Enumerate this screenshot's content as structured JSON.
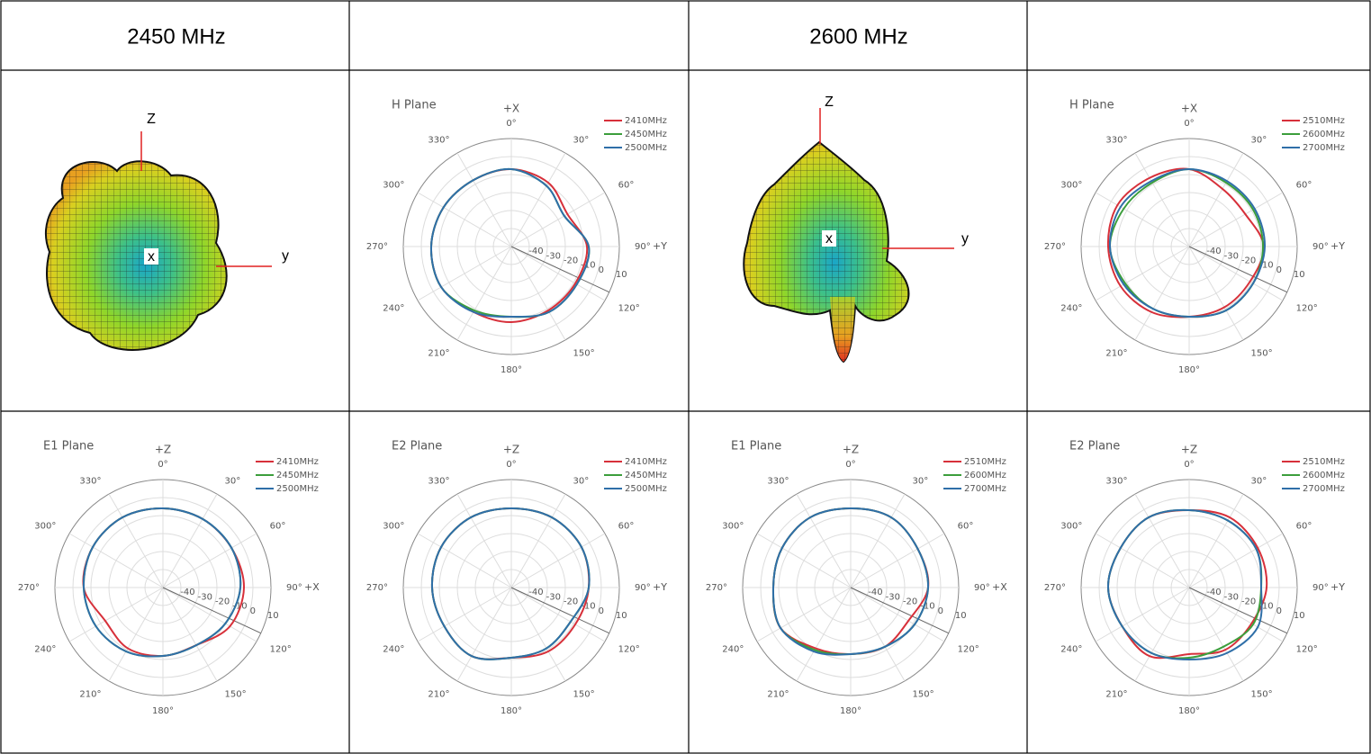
{
  "header": [
    "2450 MHz",
    "2600 MHz"
  ],
  "patterns_3d": [
    {
      "axes": {
        "z": "Z",
        "x": "x",
        "y": "y"
      }
    },
    {
      "axes": {
        "z": "Z",
        "x": "x",
        "y": "y"
      }
    }
  ],
  "chart_data": [
    {
      "type": "polar",
      "title": "H Plane",
      "axis_labels": {
        "top": "+X",
        "right": "+Y"
      },
      "theta": [
        0,
        30,
        60,
        90,
        120,
        150,
        180,
        210,
        240,
        270,
        300,
        330
      ],
      "rlim": [
        -50,
        10
      ],
      "rticks": [
        -40,
        -30,
        -20,
        -10,
        0,
        10
      ],
      "thetaticks": [
        {
          "value": 0,
          "label": "0°"
        },
        {
          "value": 30,
          "label": "30°"
        },
        {
          "value": 60,
          "label": "60°"
        },
        {
          "value": 90,
          "label": "90°"
        },
        {
          "value": 120,
          "label": "120°"
        },
        {
          "value": 150,
          "label": "150°"
        },
        {
          "value": 180,
          "label": "180°"
        },
        {
          "value": 210,
          "label": "210°"
        },
        {
          "value": 240,
          "label": "240°"
        },
        {
          "value": 270,
          "label": "270°"
        },
        {
          "value": 300,
          "label": "300°"
        },
        {
          "value": 330,
          "label": "330°"
        }
      ],
      "series": [
        {
          "name": "2410MHz",
          "color": "#d7303a",
          "values": [
            -7,
            -9,
            -14,
            -8,
            -9,
            -9,
            -8,
            -8,
            -5,
            -5.5,
            -6.5,
            -7.5
          ]
        },
        {
          "name": "2450MHz",
          "color": "#3c9e3c",
          "values": [
            -7,
            -11,
            -16,
            -7,
            -8,
            -8,
            -11,
            -9,
            -5,
            -5.5,
            -6.5,
            -7.5
          ]
        },
        {
          "name": "2500MHz",
          "color": "#2f6fa8",
          "values": [
            -7,
            -11,
            -16,
            -7,
            -8,
            -8,
            -11,
            -8,
            -5,
            -5.5,
            -6.5,
            -7.5
          ]
        }
      ]
    },
    {
      "type": "polar",
      "title": "H Plane",
      "axis_labels": {
        "top": "+X",
        "right": "+Y"
      },
      "theta": [
        0,
        30,
        60,
        90,
        120,
        150,
        180,
        210,
        240,
        270,
        300,
        330
      ],
      "rlim": [
        -50,
        10
      ],
      "rticks": [
        -40,
        -30,
        -20,
        -10,
        0,
        10
      ],
      "thetaticks": [
        {
          "value": 0,
          "label": "0°"
        },
        {
          "value": 30,
          "label": "30°"
        },
        {
          "value": 60,
          "label": "60°"
        },
        {
          "value": 90,
          "label": "90°"
        },
        {
          "value": 120,
          "label": "120°"
        },
        {
          "value": 150,
          "label": "150°"
        },
        {
          "value": 180,
          "label": "180°"
        },
        {
          "value": 210,
          "label": "210°"
        },
        {
          "value": 240,
          "label": "240°"
        },
        {
          "value": 270,
          "label": "270°"
        },
        {
          "value": 300,
          "label": "300°"
        },
        {
          "value": 330,
          "label": "330°"
        }
      ],
      "series": [
        {
          "name": "2510MHz",
          "color": "#d7303a",
          "values": [
            -7,
            -13,
            -14,
            -8.5,
            -11,
            -11,
            -11,
            -8,
            -6,
            -5,
            -4,
            -6
          ]
        },
        {
          "name": "2600MHz",
          "color": "#3c9e3c",
          "values": [
            -7,
            -9,
            -9,
            -9,
            -9,
            -9,
            -11,
            -10,
            -9,
            -6,
            -8,
            -9
          ]
        },
        {
          "name": "2700MHz",
          "color": "#2f6fa8",
          "values": [
            -7,
            -8,
            -8,
            -8,
            -9,
            -9,
            -11,
            -10,
            -8,
            -6,
            -6,
            -8
          ]
        }
      ]
    },
    {
      "type": "polar",
      "title": "E1 Plane",
      "axis_labels": {
        "top": "+Z",
        "right": "+X"
      },
      "theta": [
        0,
        30,
        60,
        90,
        120,
        150,
        180,
        210,
        240,
        270,
        300,
        330
      ],
      "rlim": [
        -50,
        10
      ],
      "rticks": [
        -40,
        -30,
        -20,
        -10,
        0,
        10
      ],
      "thetaticks": [
        {
          "value": 0,
          "label": "0°"
        },
        {
          "value": 30,
          "label": "30°"
        },
        {
          "value": 60,
          "label": "60°"
        },
        {
          "value": 90,
          "label": "90°"
        },
        {
          "value": 120,
          "label": "120°"
        },
        {
          "value": 150,
          "label": "150°"
        },
        {
          "value": 180,
          "label": "180°"
        },
        {
          "value": 210,
          "label": "210°"
        },
        {
          "value": 240,
          "label": "240°"
        },
        {
          "value": 270,
          "label": "270°"
        },
        {
          "value": 300,
          "label": "300°"
        },
        {
          "value": 330,
          "label": "330°"
        }
      ],
      "series": [
        {
          "name": "2410MHz",
          "color": "#d7303a",
          "values": [
            -6,
            -6,
            -6,
            -5,
            -7,
            -13,
            -12,
            -11,
            -13,
            -6,
            -5,
            -5
          ]
        },
        {
          "name": "2450MHz",
          "color": "#3c9e3c",
          "values": [
            -6,
            -6,
            -6,
            -7,
            -10,
            -13,
            -12,
            -9,
            -7,
            -6,
            -5,
            -5
          ]
        },
        {
          "name": "2500MHz",
          "color": "#2f6fa8",
          "values": [
            -6,
            -6,
            -6,
            -7,
            -10,
            -13,
            -12,
            -9,
            -7,
            -6,
            -5,
            -5
          ]
        }
      ]
    },
    {
      "type": "polar",
      "title": "E2 Plane",
      "axis_labels": {
        "top": "+Z",
        "right": "+Y"
      },
      "theta": [
        0,
        30,
        60,
        90,
        120,
        150,
        180,
        210,
        240,
        270,
        300,
        330
      ],
      "rlim": [
        -50,
        10
      ],
      "rticks": [
        -40,
        -30,
        -20,
        -10,
        0,
        10
      ],
      "thetaticks": [
        {
          "value": 0,
          "label": "0°"
        },
        {
          "value": 30,
          "label": "30°"
        },
        {
          "value": 60,
          "label": "60°"
        },
        {
          "value": 90,
          "label": "90°"
        },
        {
          "value": 120,
          "label": "120°"
        },
        {
          "value": 150,
          "label": "150°"
        },
        {
          "value": 180,
          "label": "180°"
        },
        {
          "value": 210,
          "label": "210°"
        },
        {
          "value": 240,
          "label": "240°"
        },
        {
          "value": 270,
          "label": "270°"
        },
        {
          "value": 300,
          "label": "300°"
        },
        {
          "value": 330,
          "label": "330°"
        }
      ],
      "series": [
        {
          "name": "2410MHz",
          "color": "#d7303a",
          "values": [
            -6,
            -5,
            -5,
            -7,
            -9,
            -9,
            -11,
            -6,
            -7,
            -6,
            -5,
            -5
          ]
        },
        {
          "name": "2450MHz",
          "color": "#3c9e3c",
          "values": [
            -6,
            -5,
            -5,
            -7,
            -12,
            -11,
            -11,
            -6,
            -7,
            -6,
            -5,
            -5
          ]
        },
        {
          "name": "2500MHz",
          "color": "#2f6fa8",
          "values": [
            -6,
            -5,
            -5,
            -7,
            -12,
            -11,
            -11,
            -6,
            -7,
            -6,
            -5,
            -5
          ]
        }
      ]
    },
    {
      "type": "polar",
      "title": "E1 Plane",
      "axis_labels": {
        "top": "+Z",
        "right": "+X"
      },
      "theta": [
        0,
        30,
        60,
        90,
        120,
        150,
        180,
        210,
        240,
        270,
        300,
        330
      ],
      "rlim": [
        -50,
        10
      ],
      "rticks": [
        -40,
        -30,
        -20,
        -10,
        0,
        10
      ],
      "thetaticks": [
        {
          "value": 0,
          "label": "0°"
        },
        {
          "value": 30,
          "label": "30°"
        },
        {
          "value": 60,
          "label": "60°"
        },
        {
          "value": 90,
          "label": "90°"
        },
        {
          "value": 120,
          "label": "120°"
        },
        {
          "value": 150,
          "label": "150°"
        },
        {
          "value": 180,
          "label": "180°"
        },
        {
          "value": 210,
          "label": "210°"
        },
        {
          "value": 240,
          "label": "240°"
        },
        {
          "value": 270,
          "label": "270°"
        },
        {
          "value": 300,
          "label": "300°"
        },
        {
          "value": 330,
          "label": "330°"
        }
      ],
      "series": [
        {
          "name": "2510MHz",
          "color": "#d7303a",
          "values": [
            -6,
            -5,
            -7,
            -7,
            -13,
            -12,
            -13,
            -11,
            -5,
            -7,
            -6,
            -5
          ]
        },
        {
          "name": "2600MHz",
          "color": "#3c9e3c",
          "values": [
            -6,
            -5,
            -7,
            -7,
            -9,
            -12,
            -13,
            -10,
            -5,
            -7,
            -6,
            -5
          ]
        },
        {
          "name": "2700MHz",
          "color": "#2f6fa8",
          "values": [
            -6,
            -5,
            -7,
            -7,
            -9,
            -12,
            -13,
            -9,
            -5,
            -7,
            -6,
            -5
          ]
        }
      ]
    },
    {
      "type": "polar",
      "title": "E2 Plane",
      "axis_labels": {
        "top": "+Z",
        "right": "+Y"
      },
      "theta": [
        0,
        30,
        60,
        90,
        120,
        150,
        180,
        210,
        240,
        270,
        300,
        330
      ],
      "rlim": [
        -50,
        10
      ],
      "rticks": [
        -40,
        -30,
        -20,
        -10,
        0,
        10
      ],
      "thetaticks": [
        {
          "value": 0,
          "label": "0°"
        },
        {
          "value": 30,
          "label": "30°"
        },
        {
          "value": 60,
          "label": "60°"
        },
        {
          "value": 90,
          "label": "90°"
        },
        {
          "value": 120,
          "label": "120°"
        },
        {
          "value": 150,
          "label": "150°"
        },
        {
          "value": 180,
          "label": "180°"
        },
        {
          "value": 210,
          "label": "210°"
        },
        {
          "value": 240,
          "label": "240°"
        },
        {
          "value": 270,
          "label": "270°"
        },
        {
          "value": 300,
          "label": "300°"
        },
        {
          "value": 330,
          "label": "330°"
        }
      ],
      "series": [
        {
          "name": "2510MHz",
          "color": "#d7303a",
          "values": [
            -7,
            -5,
            -6,
            -7,
            -10,
            -10,
            -13,
            -6,
            -7,
            -5,
            -6,
            -5
          ]
        },
        {
          "name": "2600MHz",
          "color": "#3c9e3c",
          "values": [
            -7,
            -7,
            -7,
            -10,
            -9,
            -12,
            -11,
            -8,
            -7,
            -5,
            -6,
            -5
          ]
        },
        {
          "name": "2700MHz",
          "color": "#2f6fa8",
          "values": [
            -7,
            -7,
            -7,
            -10,
            -6,
            -8,
            -10,
            -8,
            -7,
            -5,
            -6,
            -5
          ]
        }
      ]
    }
  ]
}
